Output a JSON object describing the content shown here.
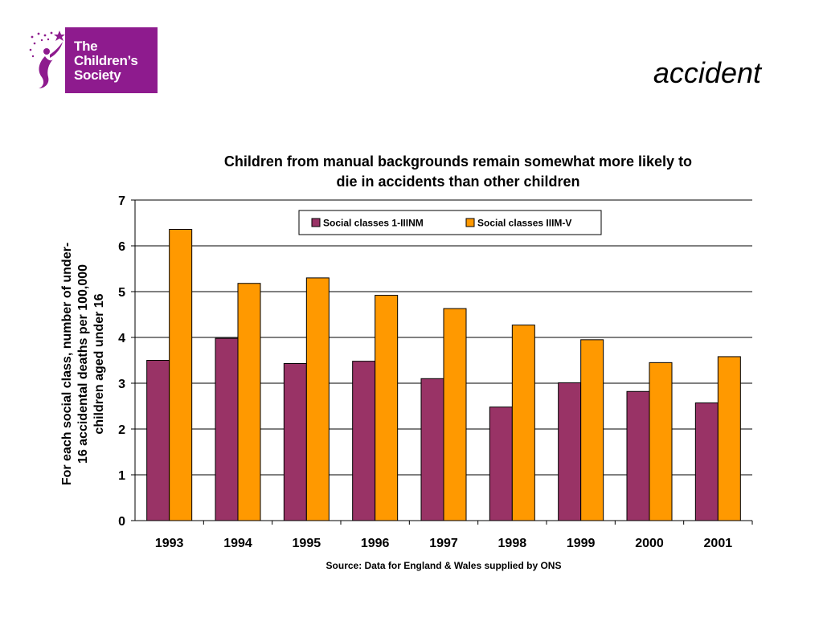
{
  "logo": {
    "line1": "The",
    "line2": "Children’s",
    "line3": "Society"
  },
  "slide_title": "accident",
  "source_note": "Source: Data for England & Wales supplied by ONS",
  "colors": {
    "class_1_iiinm": "#993366",
    "class_iiim_v": "#ff9900",
    "logo_purple": "#8e1b8e"
  },
  "chart_data": {
    "type": "bar",
    "title_line1": "Children from manual backgrounds remain somewhat more likely to",
    "title_line2": "die in accidents than other children",
    "ylabel_line1": "For each social class, number of under-",
    "ylabel_line2": "16 accidental deaths per 100,000",
    "ylabel_line3": "children aged under 16",
    "xlabel": "",
    "categories": [
      "1993",
      "1994",
      "1995",
      "1996",
      "1997",
      "1998",
      "1999",
      "2000",
      "2001"
    ],
    "ylim": [
      0,
      7
    ],
    "yticks": [
      0,
      1,
      2,
      3,
      4,
      5,
      6,
      7
    ],
    "grid": true,
    "legend_position": "top-center",
    "series": [
      {
        "name": "Social classes 1-IIINM",
        "color": "#993366",
        "values": [
          3.5,
          3.98,
          3.43,
          3.48,
          3.1,
          2.48,
          3.01,
          2.82,
          2.57
        ]
      },
      {
        "name": "Social classes IIIM-V",
        "color": "#ff9900",
        "values": [
          6.36,
          5.18,
          5.3,
          4.92,
          4.63,
          4.27,
          3.95,
          3.45,
          3.58
        ]
      }
    ]
  }
}
